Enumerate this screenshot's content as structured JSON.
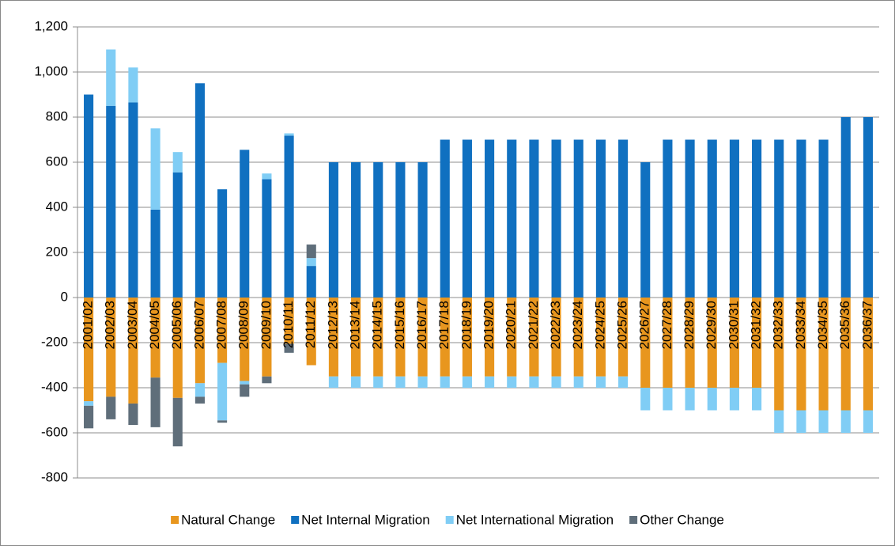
{
  "chart_data": {
    "type": "stacked-bar",
    "categories": [
      "2001/02",
      "2002/03",
      "2003/04",
      "2004/05",
      "2005/06",
      "2006/07",
      "2007/08",
      "2008/09",
      "2009/10",
      "2010/11",
      "2011/12",
      "2012/13",
      "2013/14",
      "2014/15",
      "2015/16",
      "2016/17",
      "2017/18",
      "2018/19",
      "2019/20",
      "2020/21",
      "2021/22",
      "2022/23",
      "2023/24",
      "2024/25",
      "2025/26",
      "2026/27",
      "2027/28",
      "2028/29",
      "2029/30",
      "2030/31",
      "2031/32",
      "2032/33",
      "2033/34",
      "2034/35",
      "2035/36",
      "2036/37"
    ],
    "series": [
      {
        "name": "Natural Change",
        "color": "#e8961e",
        "values": [
          -460,
          -440,
          -470,
          -355,
          -445,
          -380,
          -290,
          -370,
          -350,
          -205,
          -300,
          -350,
          -350,
          -350,
          -350,
          -350,
          -350,
          -350,
          -350,
          -350,
          -350,
          -350,
          -350,
          -350,
          -350,
          -400,
          -400,
          -400,
          -400,
          -400,
          -400,
          -500,
          -500,
          -500,
          -500,
          -500
        ]
      },
      {
        "name": "Net Internal Migration",
        "color": "#1070c0",
        "values": [
          900,
          850,
          865,
          390,
          555,
          950,
          480,
          655,
          525,
          718,
          140,
          600,
          600,
          600,
          600,
          600,
          700,
          700,
          700,
          700,
          700,
          700,
          700,
          700,
          700,
          600,
          700,
          700,
          700,
          700,
          700,
          700,
          700,
          700,
          800,
          800
        ]
      },
      {
        "name": "Net International Migration",
        "color": "#80cdf5",
        "values": [
          -20,
          250,
          155,
          360,
          90,
          -60,
          -255,
          -15,
          25,
          10,
          35,
          -50,
          -50,
          -50,
          -50,
          -50,
          -50,
          -50,
          -50,
          -50,
          -50,
          -50,
          -50,
          -50,
          -50,
          -100,
          -100,
          -100,
          -100,
          -100,
          -100,
          -100,
          -100,
          -100,
          -100,
          -100
        ]
      },
      {
        "name": "Other Change",
        "color": "#5f6e7a",
        "values": [
          -100,
          -100,
          -95,
          -220,
          -215,
          -30,
          -10,
          -55,
          -30,
          -40,
          60,
          0,
          0,
          0,
          0,
          0,
          0,
          0,
          0,
          0,
          0,
          0,
          0,
          0,
          0,
          0,
          0,
          0,
          0,
          0,
          0,
          0,
          0,
          0,
          0,
          0
        ]
      }
    ],
    "ylim": [
      -800,
      1200
    ],
    "yticks": [
      -800,
      -600,
      -400,
      -200,
      0,
      200,
      400,
      600,
      800,
      {
        "value": 1000,
        "label": "1,000"
      },
      {
        "value": 1200,
        "label": "1,200"
      }
    ],
    "grid": true,
    "legend": "bottom"
  }
}
